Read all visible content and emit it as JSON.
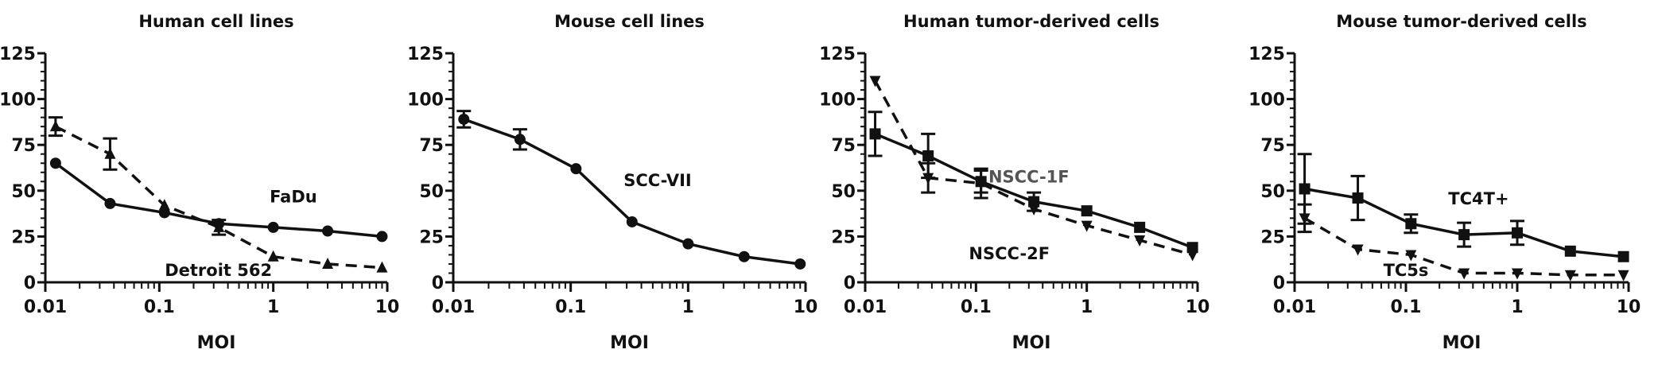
{
  "chart_data": [
    {
      "type": "line",
      "title": "Human cell lines",
      "xlabel": "MOI",
      "ylabel": "",
      "xscale": "log",
      "xlim": [
        0.01,
        10
      ],
      "ylim": [
        0,
        125
      ],
      "xticks": [
        "0.01",
        "0.1",
        "1",
        "10"
      ],
      "yticks": [
        "0",
        "25",
        "50",
        "75",
        "100",
        "125"
      ],
      "grid": false,
      "x": [
        0.0123,
        0.037,
        0.111,
        0.333,
        1,
        3,
        9
      ],
      "series": [
        {
          "name": "FaDu",
          "marker": "circle",
          "line": "solid",
          "values": [
            65,
            43,
            38,
            32,
            30,
            28,
            25
          ],
          "err": [
            null,
            null,
            null,
            null,
            null,
            null,
            null
          ],
          "label_at": [
            1.5,
            47
          ]
        },
        {
          "name": "Detroit 562",
          "marker": "triangle-up",
          "line": "dashed",
          "values": [
            85,
            70,
            42,
            30,
            14,
            10,
            8
          ],
          "err": [
            5,
            8.5,
            null,
            4,
            null,
            null,
            null
          ],
          "label_at": [
            0.33,
            7
          ]
        }
      ]
    },
    {
      "type": "line",
      "title": "Mouse cell lines",
      "xlabel": "MOI",
      "ylabel": "",
      "xscale": "log",
      "xlim": [
        0.01,
        10
      ],
      "ylim": [
        0,
        125
      ],
      "xticks": [
        "0.01",
        "0.1",
        "1",
        "10"
      ],
      "yticks": [
        "0",
        "25",
        "50",
        "75",
        "100",
        "125"
      ],
      "grid": false,
      "x": [
        0.0123,
        0.037,
        0.111,
        0.333,
        1,
        3,
        9
      ],
      "series": [
        {
          "name": "SCC-VII",
          "marker": "circle",
          "line": "solid",
          "values": [
            89,
            78,
            62,
            33,
            21,
            14,
            10
          ],
          "err": [
            4.5,
            5.5,
            null,
            null,
            null,
            null,
            null
          ],
          "label_at": [
            0.55,
            56
          ]
        }
      ]
    },
    {
      "type": "line",
      "title": "Human tumor-derived cells",
      "xlabel": "MOI",
      "ylabel": "",
      "xscale": "log",
      "xlim": [
        0.01,
        10
      ],
      "ylim": [
        0,
        125
      ],
      "xticks": [
        "0.01",
        "0.1",
        "1",
        "10"
      ],
      "yticks": [
        "0",
        "25",
        "50",
        "75",
        "100",
        "125"
      ],
      "grid": false,
      "x": [
        0.0123,
        0.037,
        0.111,
        0.333,
        1,
        3,
        9
      ],
      "series": [
        {
          "name": "NSCC-1F",
          "marker": "square",
          "line": "solid",
          "values": [
            81,
            69,
            55,
            44,
            39,
            30,
            19
          ],
          "err": [
            12,
            12,
            6,
            5,
            null,
            null,
            null
          ],
          "label_at": [
            0.3,
            58
          ],
          "label_color": "#555555"
        },
        {
          "name": "NSCC-2F",
          "marker": "triangle-down",
          "line": "dashed",
          "values": [
            110,
            57,
            54,
            40,
            31,
            23,
            15
          ],
          "err": [
            null,
            8,
            8,
            null,
            null,
            null,
            null
          ],
          "label_at": [
            0.2,
            16
          ]
        }
      ]
    },
    {
      "type": "line",
      "title": "Mouse tumor-derived cells",
      "xlabel": "MOI",
      "ylabel": "",
      "xscale": "log",
      "xlim": [
        0.01,
        10
      ],
      "ylim": [
        0,
        125
      ],
      "xticks": [
        "0.01",
        "0.1",
        "1",
        "10"
      ],
      "yticks": [
        "0",
        "25",
        "50",
        "75",
        "100",
        "125"
      ],
      "grid": false,
      "x": [
        0.0123,
        0.037,
        0.111,
        0.333,
        1,
        3,
        9
      ],
      "series": [
        {
          "name": "TC4T+",
          "marker": "square",
          "line": "solid",
          "values": [
            51,
            46,
            32,
            26,
            27,
            17,
            14
          ],
          "err": [
            19,
            12,
            5,
            6.5,
            6.5,
            null,
            null
          ],
          "label_at": [
            0.45,
            46
          ]
        },
        {
          "name": "TC5s",
          "marker": "triangle-down",
          "line": "dashed",
          "values": [
            35,
            18,
            15,
            5,
            5,
            4,
            4
          ],
          "err": [
            7.5,
            null,
            null,
            null,
            null,
            null,
            null
          ],
          "label_at": [
            0.1,
            7
          ]
        }
      ]
    }
  ]
}
